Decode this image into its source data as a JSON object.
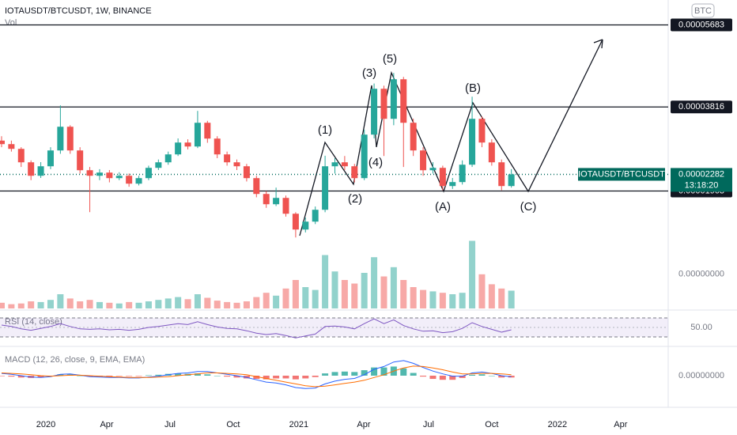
{
  "chart_data": {
    "type": "candlestick",
    "title": "IOTAUSDT/BTCUSDT, 1W, BINANCE",
    "currency_badge": "BTC",
    "volume_label": "Vol",
    "up_color": "#26a69a",
    "down_color": "#ef5350",
    "ylim": [
      8.5e-06,
      6.25e-05
    ],
    "xlim": [
      -0.16,
      68
    ],
    "xticks": [
      {
        "value": 4.52,
        "label": "2020"
      },
      {
        "value": 10.73,
        "label": "Apr"
      },
      {
        "value": 17.18,
        "label": "Jul"
      },
      {
        "value": 23.63,
        "label": "Oct"
      },
      {
        "value": 30.32,
        "label": "2021"
      },
      {
        "value": 36.94,
        "label": "Apr"
      },
      {
        "value": 43.55,
        "label": "Jul"
      },
      {
        "value": 50.0,
        "label": "Oct"
      },
      {
        "value": 56.7,
        "label": "2022"
      },
      {
        "value": 63.15,
        "label": "Apr"
      }
    ],
    "ohlc": [
      [
        3.05e-05,
        3.15e-05,
        2.9e-05,
        2.97e-05
      ],
      [
        2.97e-05,
        3.05e-05,
        2.8e-05,
        2.862e-05
      ],
      [
        2.862e-05,
        2.9e-05,
        2.45e-05,
        2.556e-05
      ],
      [
        2.556e-05,
        2.6e-05,
        2.15e-05,
        2.25e-05
      ],
      [
        2.25e-05,
        2.56e-05,
        2.2e-05,
        2.466e-05
      ],
      [
        2.466e-05,
        2.9e-05,
        2.4e-05,
        2.826e-05
      ],
      [
        2.826e-05,
        3.852e-05,
        2.75e-05,
        3.366e-05
      ],
      [
        3.366e-05,
        3.4e-05,
        2.75e-05,
        2.826e-05
      ],
      [
        2.826e-05,
        2.9e-05,
        2.3e-05,
        2.376e-05
      ],
      [
        2.376e-05,
        2.45e-05,
        1.422e-05,
        2.25e-05
      ],
      [
        2.25e-05,
        2.4e-05,
        2.15e-05,
        2.322e-05
      ],
      [
        2.322e-05,
        2.38e-05,
        2.1e-05,
        2.196e-05
      ],
      [
        2.196e-05,
        2.33e-05,
        2.15e-05,
        2.25e-05
      ],
      [
        2.25e-05,
        2.3e-05,
        2e-05,
        2.07e-05
      ],
      [
        2.07e-05,
        2.25e-05,
        2.03e-05,
        2.196e-05
      ],
      [
        2.196e-05,
        2.48e-05,
        2.15e-05,
        2.43e-05
      ],
      [
        2.43e-05,
        2.62e-05,
        2.38e-05,
        2.556e-05
      ],
      [
        2.556e-05,
        2.8e-05,
        2.5e-05,
        2.736e-05
      ],
      [
        2.736e-05,
        3.1e-05,
        2.7e-05,
        3.006e-05
      ],
      [
        3.006e-05,
        3.08e-05,
        2.85e-05,
        2.916e-05
      ],
      [
        2.916e-05,
        3.726e-05,
        2.88e-05,
        3.456e-05
      ],
      [
        3.456e-05,
        3.5e-05,
        3e-05,
        3.096e-05
      ],
      [
        3.096e-05,
        3.15e-05,
        2.65e-05,
        2.736e-05
      ],
      [
        2.736e-05,
        2.8e-05,
        2.48e-05,
        2.556e-05
      ],
      [
        2.556e-05,
        2.62e-05,
        2.38e-05,
        2.466e-05
      ],
      [
        2.466e-05,
        2.52e-05,
        2.12e-05,
        2.196e-05
      ],
      [
        2.196e-05,
        2.25e-05,
        1.76e-05,
        1.836e-05
      ],
      [
        1.836e-05,
        1.9e-05,
        1.52e-05,
        1.602e-05
      ],
      [
        1.602e-05,
        1.98e-05,
        1.56e-05,
        1.746e-05
      ],
      [
        1.746e-05,
        1.8e-05,
        1.32e-05,
        1.386e-05
      ],
      [
        1.386e-05,
        1.42e-05,
        8.46e-06,
        1.026e-05
      ],
      [
        1.026e-05,
        1.3e-05,
        9.6e-06,
        1.206e-05
      ],
      [
        1.206e-05,
        1.55e-05,
        1.15e-05,
        1.476e-05
      ],
      [
        1.476e-05,
        2.706e-05,
        1.42e-05,
        2.466e-05
      ],
      [
        2.466e-05,
        2.65e-05,
        2.3e-05,
        2.556e-05
      ],
      [
        2.556e-05,
        2.7e-05,
        2.38e-05,
        2.466e-05
      ],
      [
        2.466e-05,
        2.52e-05,
        2.1e-05,
        2.196e-05
      ],
      [
        2.196e-05,
        3.3e-05,
        2.15e-05,
        3.186e-05
      ],
      [
        3.186e-05,
        4.35e-05,
        3.1e-05,
        4.23e-05
      ],
      [
        4.23e-05,
        4.3e-05,
        2.7e-05,
        3.546e-05
      ],
      [
        3.546e-05,
        4.59e-05,
        3.4e-05,
        4.446e-05
      ],
      [
        4.446e-05,
        4.5e-05,
        2.45e-05,
        3.456e-05
      ],
      [
        3.456e-05,
        3.55e-05,
        2.7e-05,
        2.826e-05
      ],
      [
        2.826e-05,
        2.9e-05,
        2.25e-05,
        2.376e-05
      ],
      [
        2.376e-05,
        2.56e-05,
        2.3e-05,
        2.43e-05
      ],
      [
        2.43e-05,
        2.48e-05,
        1.92e-05,
        2.016e-05
      ],
      [
        2.016e-05,
        2.2e-05,
        1.95e-05,
        2.106e-05
      ],
      [
        2.106e-05,
        2.6e-05,
        2.05e-05,
        2.502e-05
      ],
      [
        2.502e-05,
        4.05e-05,
        2.45e-05,
        3.546e-05
      ],
      [
        3.546e-05,
        3.6e-05,
        2.9e-05,
        3.006e-05
      ],
      [
        3.006e-05,
        3.08e-05,
        2.48e-05,
        2.556e-05
      ],
      [
        2.556e-05,
        2.62e-05,
        1.92e-05,
        2.016e-05
      ],
      [
        2.016e-05,
        2.4e-05,
        1.98e-05,
        2.282e-05
      ]
    ],
    "levels": [
      5.683e-05,
      3.816e-05,
      1.903e-05
    ],
    "last_price": {
      "name": "IOTAUSDT/BTCUSDT",
      "value": 2.282e-05,
      "countdown": "13:18:20"
    },
    "wave_labels": [
      "(1)",
      "(2)",
      "(3)",
      "(4)",
      "(5)",
      "(A)",
      "(B)",
      "(C)"
    ],
    "volume": {
      "ylim": [
        0,
        100
      ],
      "yticks": [
        {
          "value": 48,
          "label": "0.00000000"
        }
      ],
      "values": [
        8,
        6,
        7,
        10,
        9,
        12,
        20,
        14,
        10,
        12,
        9,
        8,
        7,
        9,
        8,
        10,
        12,
        14,
        16,
        13,
        20,
        15,
        11,
        9,
        8,
        10,
        16,
        22,
        18,
        28,
        40,
        30,
        26,
        75,
        52,
        40,
        35,
        50,
        72,
        45,
        58,
        40,
        30,
        26,
        24,
        22,
        20,
        22,
        95,
        48,
        34,
        28,
        25
      ]
    },
    "rsi": {
      "label": "RSI (14, close)",
      "color": "#7e57c2",
      "ylim": [
        20,
        80
      ],
      "yticks": [
        {
          "value": 50,
          "label": "50.00"
        }
      ],
      "band": [
        30,
        70
      ],
      "values": [
        55,
        52,
        47,
        44,
        48,
        52,
        58,
        52,
        47,
        46,
        47,
        45,
        46,
        44,
        46,
        50,
        52,
        55,
        58,
        56,
        62,
        56,
        51,
        48,
        47,
        43,
        38,
        35,
        37,
        33,
        28,
        32,
        36,
        52,
        53,
        51,
        47,
        58,
        68,
        58,
        66,
        54,
        47,
        42,
        43,
        39,
        41,
        48,
        60,
        52,
        46,
        40,
        45
      ]
    },
    "macd": {
      "label": "MACD (12, 26, close, 9, EMA, EMA)",
      "macd_color": "#2962ff",
      "signal_color": "#ff6d00",
      "ylim": [
        -4.5e-06,
        4.5e-06
      ],
      "yticks": [
        {
          "value": 0,
          "label": "0.00000000"
        }
      ],
      "macd": [
        5e-07,
        3e-07,
        0,
        -3e-07,
        -4e-07,
        -2e-07,
        3e-07,
        4e-07,
        1e-07,
        -2e-07,
        -3e-07,
        -4e-07,
        -4e-07,
        -5e-07,
        -5e-07,
        -3e-07,
        -1e-07,
        2e-07,
        5e-07,
        6e-07,
        9e-07,
        9e-07,
        6e-07,
        3e-07,
        0,
        -4e-07,
        -9e-07,
        -1.4e-06,
        -1.6e-06,
        -2e-06,
        -2.6e-06,
        -2.8e-06,
        -2.7e-06,
        -1.8e-06,
        -1.2e-06,
        -8e-07,
        -6e-07,
        2e-07,
        1.4e-06,
        2e-06,
        3e-06,
        3.3e-06,
        2.7e-06,
        1.8e-06,
        1e-06,
        4e-07,
        -1e-07,
        -1e-07,
        6e-07,
        8e-07,
        5e-07,
        0,
        -2e-07
      ],
      "signal": [
        6e-07,
        5e-07,
        4e-07,
        2e-07,
        0,
        -1e-07,
        0,
        1e-07,
        1e-07,
        0,
        -1e-07,
        -2e-07,
        -3e-07,
        -4e-07,
        -4e-07,
        -4e-07,
        -3e-07,
        -2e-07,
        0,
        2e-07,
        4e-07,
        6e-07,
        6e-07,
        5e-07,
        4e-07,
        2e-07,
        -2e-07,
        -6e-07,
        -1e-06,
        -1.4e-06,
        -1.8e-06,
        -2.2e-06,
        -2.4e-06,
        -2.3e-06,
        -2e-06,
        -1.7e-06,
        -1.4e-06,
        -1e-06,
        -4e-07,
        2e-07,
        1e-06,
        1.7e-06,
        2.1e-06,
        2e-06,
        1.7e-06,
        1.3e-06,
        8e-07,
        4e-07,
        4e-07,
        5e-07,
        5e-07,
        4e-07,
        2e-07
      ],
      "hist": [
        -1e-07,
        -2e-07,
        -4e-07,
        -5e-07,
        -4e-07,
        -1e-07,
        3e-07,
        3e-07,
        0,
        -2e-07,
        -2e-07,
        -2e-07,
        -1e-07,
        -1e-07,
        -1e-07,
        1e-07,
        2e-07,
        4e-07,
        5e-07,
        4e-07,
        5e-07,
        3e-07,
        0,
        -2e-07,
        -4e-07,
        -6e-07,
        -7e-07,
        -8e-07,
        -6e-07,
        -6e-07,
        -8e-07,
        -6e-07,
        -3e-07,
        5e-07,
        8e-07,
        9e-07,
        8e-07,
        1.2e-06,
        1.8e-06,
        1.8e-06,
        2e-06,
        1.6e-06,
        6e-07,
        -2e-07,
        -7e-07,
        -9e-07,
        -9e-07,
        -5e-07,
        2e-07,
        3e-07,
        0,
        -4e-07,
        -4e-07
      ]
    }
  }
}
